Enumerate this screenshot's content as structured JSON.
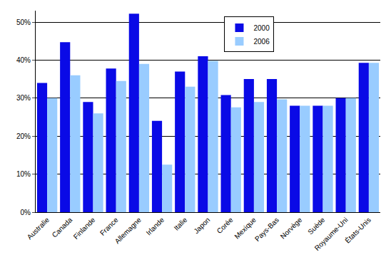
{
  "chart_data": {
    "type": "bar",
    "categories": [
      "Australie",
      "Canada",
      "Finlande",
      "France",
      "Allemagne",
      "Irlande",
      "Italie",
      "Japon",
      "Corée",
      "Mexique",
      "Pays-Bas",
      "Norvège",
      "Suède",
      "Royaume-Uni",
      "États-Unis"
    ],
    "series": [
      {
        "name": "2000",
        "color": "#0a0ae6",
        "values": [
          34,
          44.7,
          29,
          37.8,
          52.2,
          24,
          37,
          41,
          30.8,
          35,
          35,
          28,
          28,
          30,
          39.3
        ]
      },
      {
        "name": "2006",
        "color": "#99ccff",
        "values": [
          30,
          36,
          26,
          34.5,
          39,
          12.5,
          33,
          39.8,
          27.6,
          29,
          29.7,
          28,
          28,
          30,
          39.3
        ]
      }
    ],
    "ylim": [
      0,
      53
    ],
    "yticks": [
      {
        "value": 0,
        "label": "0%"
      },
      {
        "value": 10,
        "label": "10%"
      },
      {
        "value": 20,
        "label": "20%"
      },
      {
        "value": 30,
        "label": "30%"
      },
      {
        "value": 40,
        "label": "40%"
      },
      {
        "value": 50,
        "label": "50%"
      }
    ],
    "grid": true,
    "legend": "top"
  }
}
